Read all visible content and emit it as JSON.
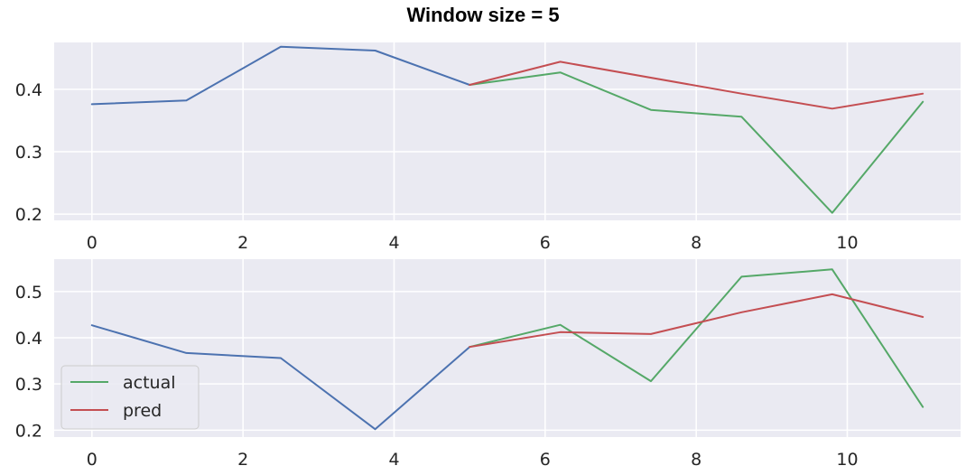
{
  "figure": {
    "title": "Window size = 5"
  },
  "colors": {
    "background": "#eaeaf2",
    "grid": "#ffffff",
    "history": "#4c72b0",
    "actual": "#55a868",
    "pred": "#c44e52"
  },
  "chart_data": [
    {
      "type": "line",
      "xlim": [
        -0.5,
        11.5
      ],
      "ylim": [
        0.19,
        0.475
      ],
      "xticks": [
        0,
        2,
        4,
        6,
        8,
        10
      ],
      "yticks": [
        0.2,
        0.3,
        0.4
      ],
      "grid": true,
      "series": [
        {
          "key": "history",
          "x": [
            0,
            1.25,
            2.5,
            3.75,
            5
          ],
          "y": [
            0.376,
            0.382,
            0.468,
            0.462,
            0.407
          ]
        },
        {
          "key": "actual",
          "name": "actual",
          "x": [
            5,
            6.2,
            7.4,
            8.6,
            9.8,
            11
          ],
          "y": [
            0.407,
            0.427,
            0.367,
            0.356,
            0.202,
            0.38
          ]
        },
        {
          "key": "pred",
          "name": "pred",
          "x": [
            5,
            6.2,
            8.6,
            9.8,
            11
          ],
          "y": [
            0.407,
            0.444,
            0.393,
            0.369,
            0.393
          ]
        }
      ]
    },
    {
      "type": "line",
      "xlim": [
        -0.5,
        11.5
      ],
      "ylim": [
        0.185,
        0.57
      ],
      "xticks": [
        0,
        2,
        4,
        6,
        8,
        10
      ],
      "yticks": [
        0.2,
        0.3,
        0.4,
        0.5
      ],
      "grid": true,
      "legend": {
        "position": "lower-left",
        "entries": [
          "actual",
          "pred"
        ]
      },
      "series": [
        {
          "key": "history",
          "x": [
            0,
            1.25,
            2.5,
            3.75,
            5
          ],
          "y": [
            0.427,
            0.367,
            0.356,
            0.202,
            0.38
          ]
        },
        {
          "key": "actual",
          "name": "actual",
          "x": [
            5,
            6.2,
            7.4,
            8.6,
            9.8,
            11
          ],
          "y": [
            0.38,
            0.428,
            0.306,
            0.532,
            0.548,
            0.25
          ]
        },
        {
          "key": "pred",
          "name": "pred",
          "x": [
            5,
            6.2,
            7.4,
            8.6,
            9.8,
            11
          ],
          "y": [
            0.38,
            0.412,
            0.408,
            0.455,
            0.494,
            0.445
          ]
        }
      ]
    }
  ]
}
